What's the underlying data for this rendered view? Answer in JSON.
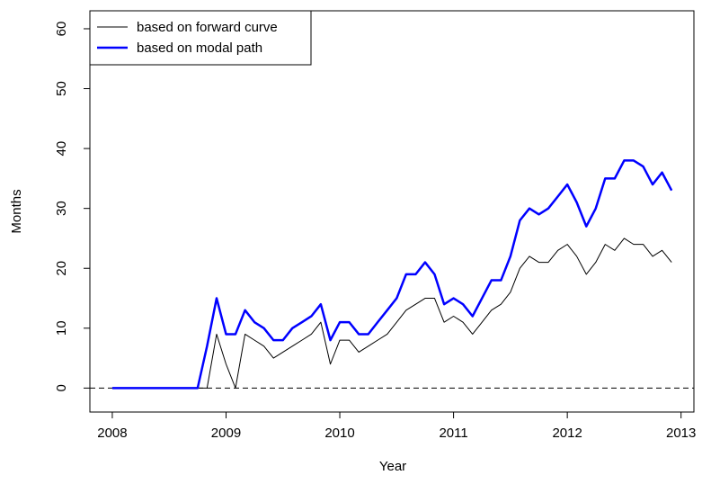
{
  "chart_data": {
    "type": "line",
    "x_label": "Year",
    "y_label": "Months",
    "x": [
      2008,
      2008.083,
      2008.167,
      2008.25,
      2008.333,
      2008.417,
      2008.5,
      2008.583,
      2008.667,
      2008.75,
      2008.833,
      2008.917,
      2009,
      2009.083,
      2009.167,
      2009.25,
      2009.333,
      2009.417,
      2009.5,
      2009.583,
      2009.667,
      2009.75,
      2009.833,
      2009.917,
      2010,
      2010.083,
      2010.167,
      2010.25,
      2010.333,
      2010.417,
      2010.5,
      2010.583,
      2010.667,
      2010.75,
      2010.833,
      2010.917,
      2011,
      2011.083,
      2011.167,
      2011.25,
      2011.333,
      2011.417,
      2011.5,
      2011.583,
      2011.667,
      2011.75,
      2011.833,
      2011.917,
      2012,
      2012.083,
      2012.167,
      2012.25,
      2012.333,
      2012.417,
      2012.5,
      2012.583,
      2012.667,
      2012.75,
      2012.833,
      2012.917
    ],
    "series": [
      {
        "name": "based on forward curve",
        "color": "#000000",
        "width": 1,
        "values": [
          0,
          0,
          0,
          0,
          0,
          0,
          0,
          0,
          0,
          0,
          0,
          9,
          4,
          0,
          9,
          8,
          7,
          5,
          6,
          7,
          8,
          9,
          11,
          4,
          8,
          8,
          6,
          7,
          8,
          9,
          11,
          13,
          14,
          15,
          15,
          11,
          12,
          11,
          9,
          11,
          13,
          14,
          16,
          20,
          22,
          21,
          21,
          23,
          24,
          22,
          19,
          21,
          24,
          23,
          25,
          24,
          24,
          22,
          23,
          21
        ]
      },
      {
        "name": "based on modal path",
        "color": "#0000ff",
        "width": 2.5,
        "values": [
          0,
          0,
          0,
          0,
          0,
          0,
          0,
          0,
          0,
          0,
          7,
          15,
          9,
          9,
          13,
          11,
          10,
          8,
          8,
          10,
          11,
          12,
          14,
          8,
          11,
          11,
          9,
          9,
          11,
          13,
          15,
          19,
          19,
          21,
          19,
          14,
          15,
          14,
          12,
          15,
          18,
          18,
          22,
          28,
          30,
          29,
          30,
          32,
          34,
          31,
          27,
          30,
          35,
          35,
          38,
          38,
          37,
          34,
          36,
          33
        ]
      }
    ],
    "xlim": [
      2007.803,
      2013.113
    ],
    "xticks": [
      2008,
      2009,
      2010,
      2011,
      2012,
      2013
    ],
    "ylim": [
      -4,
      63
    ],
    "yticks": [
      0,
      10,
      20,
      30,
      40,
      50,
      60
    ],
    "hline": 0,
    "legend": "top-left"
  }
}
